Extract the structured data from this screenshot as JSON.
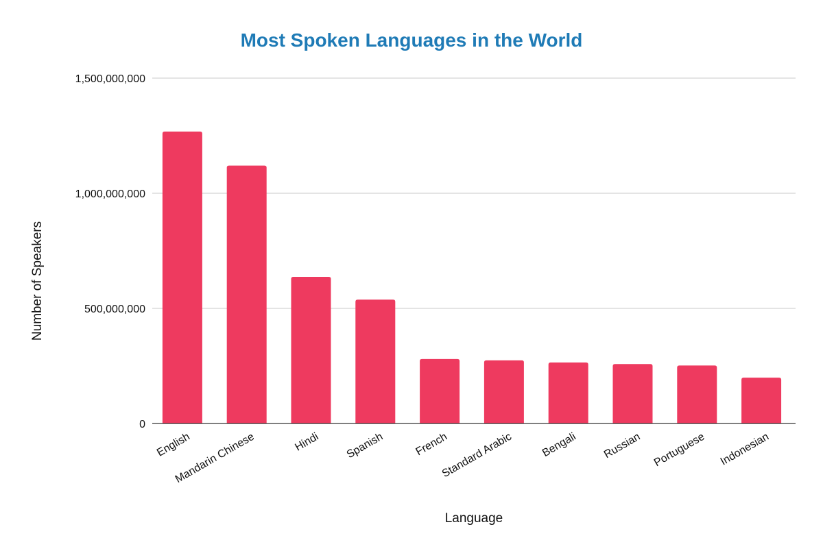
{
  "chart_data": {
    "type": "bar",
    "title": "Most Spoken Languages in the World",
    "xlabel": "Language",
    "ylabel": "Number of Speakers",
    "categories": [
      "English",
      "Mandarin Chinese",
      "Hindi",
      "Spanish",
      "French",
      "Standard Arabic",
      "Bengali",
      "Russian",
      "Portuguese",
      "Indonesian"
    ],
    "values": [
      1268000000,
      1120000000,
      637000000,
      538000000,
      280000000,
      274000000,
      265000000,
      258000000,
      252000000,
      199000000
    ],
    "ylim": [
      0,
      1500000000
    ],
    "yticks": [
      0,
      500000000,
      1000000000,
      1500000000
    ],
    "ytick_labels": [
      "0",
      "500,000,000",
      "1,000,000,000",
      "1,500,000,000"
    ],
    "grid": true,
    "bar_color": "#ee3a5f",
    "title_color": "#1f7bb6"
  }
}
